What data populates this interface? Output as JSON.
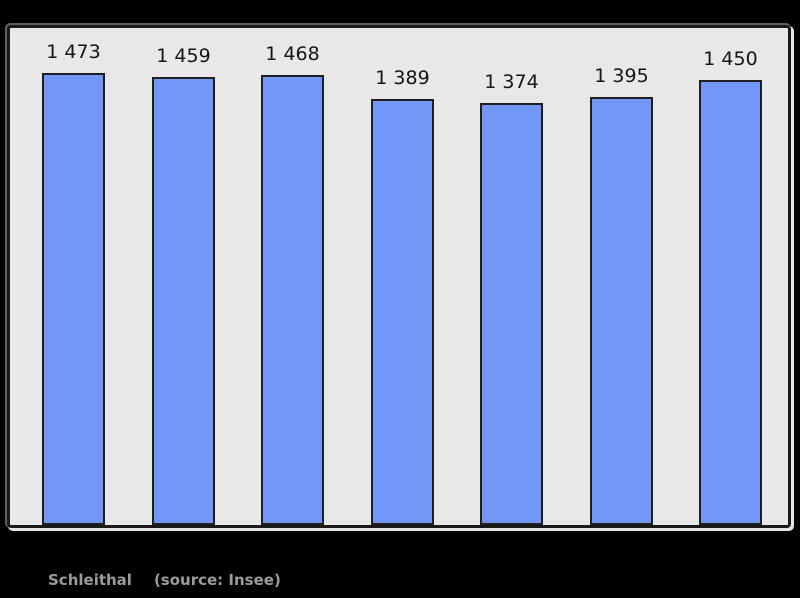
{
  "chart_data": {
    "type": "bar",
    "title": "",
    "xlabel": "",
    "ylabel": "",
    "values": [
      1473,
      1459,
      1468,
      1389,
      1374,
      1395,
      1450
    ],
    "value_labels": [
      "1 473",
      "1 459",
      "1 468",
      "1 389",
      "1 374",
      "1 395",
      "1 450"
    ],
    "baseline": 0,
    "ylim": [
      0,
      1620
    ],
    "grid": false,
    "legend": false,
    "bar_count": 7
  },
  "caption": {
    "commune": "Schleithal",
    "source": "(source: Insee)"
  },
  "colors": {
    "page_bg": "#000000",
    "plot_bg": "#e8e8e8",
    "frame_border": "#1a1a1a",
    "bar_fill": "#7297f7",
    "bar_border": "#1f1f1f",
    "label_text": "#141414",
    "caption_text": "#9b9b9b"
  }
}
